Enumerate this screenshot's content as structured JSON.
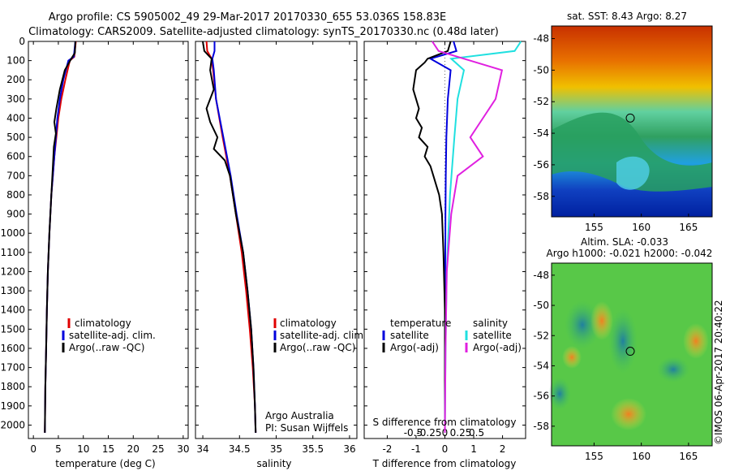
{
  "header": {
    "line1": "Argo profile: CS 5905002_49 29-Mar-2017 20170330_655 53.036S 158.83E",
    "line2": "Climatology: CARS2009. Satellite-adjusted climatology: synTS_20170330.nc (0.48d later)"
  },
  "colors": {
    "climatology": "#e00000",
    "satellite": "#0000dd",
    "argo": "#000000",
    "sat_salinity": "#20e0e0",
    "argo_salinity": "#e020e0"
  },
  "chart_data": [
    {
      "type": "line",
      "xlabel": "temperature (deg C)",
      "ylabel": "",
      "xlim": [
        -1,
        31
      ],
      "ylim": [
        2070,
        0
      ],
      "x_ticks": [
        0,
        5,
        10,
        15,
        20,
        25,
        30
      ],
      "y_ticks": [
        0,
        100,
        200,
        300,
        400,
        500,
        600,
        700,
        800,
        900,
        1000,
        1100,
        1200,
        1300,
        1400,
        1500,
        1600,
        1700,
        1800,
        1900,
        2000
      ],
      "legend": [
        "climatology",
        "satellite-adj. clim.",
        "Argo(..raw -QC)"
      ],
      "series": [
        {
          "name": "climatology",
          "depth": [
            0,
            80,
            100,
            200,
            300,
            400,
            500,
            600,
            700,
            800,
            1000,
            1200,
            1400,
            1600,
            1800,
            2040
          ],
          "values": [
            8.5,
            8.2,
            7.3,
            6.4,
            5.6,
            5.0,
            4.6,
            4.2,
            3.9,
            3.6,
            3.2,
            2.9,
            2.7,
            2.55,
            2.4,
            2.3
          ]
        },
        {
          "name": "satellite-adj. clim.",
          "depth": [
            0,
            80,
            100,
            200,
            300,
            400,
            500,
            600,
            700,
            800,
            1000,
            1200,
            1400,
            1600,
            1800,
            2040
          ],
          "values": [
            8.4,
            8.1,
            7.0,
            6.0,
            5.3,
            4.8,
            4.5,
            4.2,
            3.9,
            3.6,
            3.2,
            2.9,
            2.7,
            2.55,
            2.4,
            2.3
          ]
        },
        {
          "name": "Argo(..raw -QC)",
          "depth": [
            0,
            60,
            90,
            150,
            250,
            350,
            420,
            480,
            550,
            650,
            800,
            1000,
            1200,
            1400,
            1600,
            1800,
            2040
          ],
          "values": [
            8.4,
            8.3,
            7.6,
            6.3,
            5.3,
            4.6,
            4.2,
            4.5,
            4.1,
            3.9,
            3.6,
            3.2,
            2.9,
            2.7,
            2.55,
            2.4,
            2.3
          ]
        }
      ]
    },
    {
      "type": "line",
      "xlabel": "salinity",
      "ylabel": "",
      "xlim": [
        33.9,
        36.1
      ],
      "ylim": [
        2070,
        0
      ],
      "x_ticks": [
        34,
        34.5,
        35,
        35.5,
        36
      ],
      "legend": [
        "climatology",
        "satellite-adj. clim.",
        "Argo(..raw -QC)"
      ],
      "series": [
        {
          "name": "climatology",
          "depth": [
            0,
            50,
            90,
            150,
            300,
            500,
            700,
            900,
            1100,
            1300,
            1500,
            1700,
            1900,
            2040
          ],
          "values": [
            34.05,
            34.06,
            34.12,
            34.14,
            34.18,
            34.27,
            34.37,
            34.45,
            34.53,
            34.59,
            34.64,
            34.68,
            34.71,
            34.72
          ]
        },
        {
          "name": "satellite-adj. clim.",
          "depth": [
            0,
            50,
            90,
            150,
            300,
            500,
            700,
            900,
            1100,
            1300,
            1500,
            1700,
            1900,
            2040
          ],
          "values": [
            34.16,
            34.16,
            34.13,
            34.15,
            34.18,
            34.28,
            34.38,
            34.46,
            34.55,
            34.61,
            34.66,
            34.69,
            34.71,
            34.72
          ]
        },
        {
          "name": "Argo(..raw -QC)",
          "depth": [
            0,
            50,
            90,
            150,
            250,
            350,
            420,
            500,
            560,
            620,
            700,
            900,
            1100,
            1300,
            1500,
            1700,
            1900,
            2040
          ],
          "values": [
            34.0,
            34.02,
            34.12,
            34.1,
            34.15,
            34.05,
            34.1,
            34.2,
            34.15,
            34.3,
            34.37,
            34.45,
            34.55,
            34.61,
            34.66,
            34.69,
            34.71,
            34.72
          ]
        }
      ],
      "note_lines": [
        "Argo Australia",
        "PI: Susan Wijffels"
      ]
    },
    {
      "type": "line",
      "xlabel": "T difference from climatology",
      "top_xlabel": "S difference from climatology",
      "xlim": [
        -2.8,
        2.8
      ],
      "ylim": [
        2070,
        0
      ],
      "x_ticks": [
        -2,
        -1,
        0,
        1,
        2
      ],
      "top_x_ticks": [
        "-0.5",
        "-0.25",
        "0",
        "0.25",
        "0.5"
      ],
      "legend_groups": [
        {
          "title": "temperature",
          "entries": [
            "satellite",
            "Argo(-adj)"
          ]
        },
        {
          "title": "salinity",
          "entries": [
            "satellite",
            "Argo(-adj)"
          ]
        }
      ],
      "series": [
        {
          "name": "satellite",
          "group": "temperature",
          "depth": [
            0,
            50,
            90,
            150,
            300,
            500,
            700,
            900,
            1200,
            1500,
            1800,
            2040
          ],
          "values": [
            0.3,
            0.4,
            -0.5,
            0.2,
            0.1,
            0.05,
            0.03,
            0.02,
            0.01,
            0.0,
            0.0,
            0.0
          ]
        },
        {
          "name": "Argo(-adj)",
          "group": "temperature",
          "depth": [
            0,
            50,
            90,
            110,
            150,
            250,
            350,
            400,
            450,
            500,
            550,
            600,
            650,
            700,
            800,
            900,
            1100,
            1400,
            1700,
            2040
          ],
          "values": [
            0.2,
            0.1,
            -0.6,
            -0.7,
            -1.0,
            -1.1,
            -0.9,
            -1.0,
            -0.8,
            -0.9,
            -0.6,
            -0.7,
            -0.5,
            -0.4,
            -0.2,
            -0.1,
            -0.05,
            0.0,
            0.0,
            0.0
          ]
        },
        {
          "name": "satellite",
          "group": "salinity",
          "depth": [
            0,
            50,
            90,
            150,
            300,
            500,
            800,
            1200,
            1600,
            2040
          ],
          "values": [
            1.2,
            1.1,
            0.1,
            0.3,
            0.2,
            0.15,
            0.08,
            0.03,
            0.01,
            0.0
          ]
        },
        {
          "name": "Argo(-adj)",
          "group": "salinity",
          "depth": [
            0,
            50,
            90,
            150,
            300,
            400,
            500,
            600,
            700,
            900,
            1200,
            1600,
            2040
          ],
          "values": [
            -0.2,
            -0.1,
            0.3,
            0.9,
            0.8,
            0.6,
            0.4,
            0.6,
            0.2,
            0.1,
            0.03,
            0.01,
            0.0
          ]
        }
      ]
    },
    {
      "type": "heatmap",
      "title": "sat. SST: 8.43  Argo: 8.27",
      "xlim": [
        150.5,
        167.5
      ],
      "ylim": [
        -59.3,
        -47.2
      ],
      "x_ticks": [
        155,
        160,
        165
      ],
      "y_ticks": [
        -48,
        -50,
        -52,
        -54,
        -56,
        -58
      ],
      "float_position": [
        158.83,
        -53.036
      ]
    },
    {
      "type": "heatmap",
      "title_line1": "Altim. SLA: -0.033",
      "title_line2": "Argo h1000: -0.021 h2000: -0.042",
      "xlim": [
        150.5,
        167.5
      ],
      "ylim": [
        -59.3,
        -47.2
      ],
      "x_ticks": [
        155,
        160,
        165
      ],
      "y_ticks": [
        -48,
        -50,
        -52,
        -54,
        -56,
        -58
      ],
      "float_position": [
        158.83,
        -53.036
      ]
    }
  ],
  "footer_stamp": "©IMOS 06-Apr-2017 20:40:22"
}
